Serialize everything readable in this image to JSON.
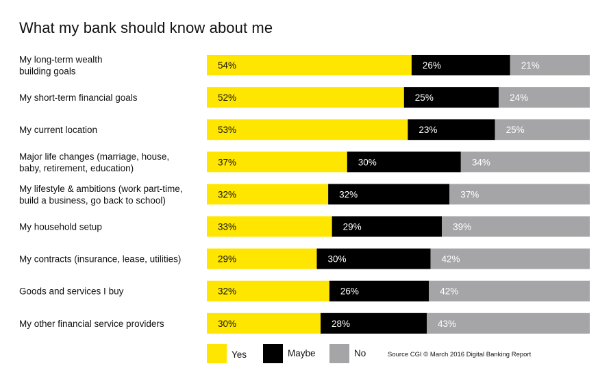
{
  "title": "What my bank should know about me",
  "source": "Source CGI © March 2016 Digital Banking Report",
  "colors": {
    "yes": "#ffe600",
    "maybe": "#000000",
    "no": "#a5a5a7"
  },
  "chart_data": {
    "type": "bar",
    "orientation": "horizontal",
    "stacked": true,
    "title": "What my bank should know about me",
    "categories": [
      [
        "My long-term wealth",
        "building goals"
      ],
      [
        "My short-term financial goals"
      ],
      [
        "My current location"
      ],
      [
        "Major life changes (marriage, house,",
        "baby, retirement, education)"
      ],
      [
        "My lifestyle & ambitions (work part-time,",
        "build a business, go back to school)"
      ],
      [
        "My household setup"
      ],
      [
        "My contracts (insurance, lease, utilities)"
      ],
      [
        "Goods and services I buy"
      ],
      [
        "My other financial service providers"
      ]
    ],
    "series": [
      {
        "name": "Yes",
        "values": [
          54,
          52,
          53,
          37,
          32,
          33,
          29,
          32,
          30
        ]
      },
      {
        "name": "Maybe",
        "values": [
          26,
          25,
          23,
          30,
          32,
          29,
          30,
          26,
          28
        ]
      },
      {
        "name": "No",
        "values": [
          21,
          24,
          25,
          34,
          37,
          39,
          42,
          42,
          43
        ]
      }
    ],
    "value_suffix": "%",
    "legend_position": "bottom",
    "grid": false
  }
}
